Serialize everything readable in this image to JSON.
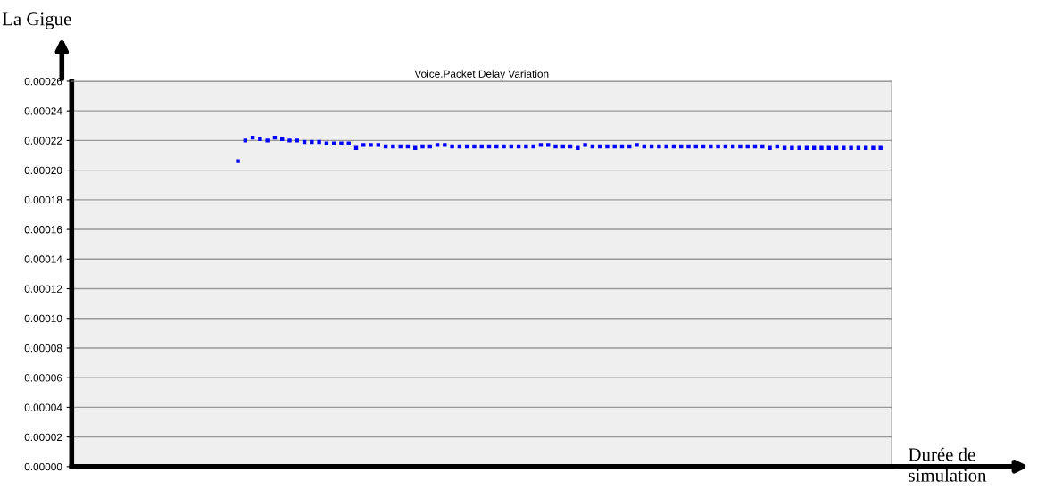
{
  "chart_data": {
    "type": "scatter",
    "title": "Voice.Packet Delay Variation",
    "xlabel": "Durée de\nsimulation",
    "ylabel": "La Gigue",
    "categories": [
      null,
      null,
      null,
      null,
      null,
      null,
      null,
      null,
      null,
      null,
      null,
      null,
      null,
      null,
      null,
      null,
      null,
      null,
      null,
      null,
      null,
      null,
      null,
      null,
      null,
      null,
      null,
      null,
      null,
      null,
      null,
      null,
      null,
      null,
      null,
      null,
      null,
      null,
      null,
      null,
      null,
      null,
      null,
      null,
      null,
      null,
      null,
      null,
      null,
      null,
      null,
      null,
      null,
      null,
      null,
      null,
      null,
      null,
      null,
      null,
      null,
      null,
      null,
      null,
      null,
      null,
      null,
      null,
      null,
      null,
      null,
      null,
      null,
      null,
      null,
      null,
      null,
      null,
      null,
      null,
      null,
      null,
      null,
      null,
      null,
      null,
      null,
      null,
      null,
      null,
      null,
      null,
      null,
      null,
      null,
      null,
      null,
      null,
      null,
      null,
      null,
      null,
      null,
      null,
      null,
      null,
      null,
      null,
      null,
      null,
      null
    ],
    "values": [
      null,
      null,
      null,
      null,
      null,
      null,
      null,
      null,
      null,
      null,
      null,
      null,
      null,
      null,
      null,
      null,
      null,
      null,
      null,
      null,
      null,
      null,
      0.000206,
      0.00022,
      0.000222,
      0.000221,
      0.00022,
      0.000222,
      0.000221,
      0.00022,
      0.00022,
      0.000219,
      0.000219,
      0.000219,
      0.000218,
      0.000218,
      0.000218,
      0.000218,
      0.000215,
      0.000217,
      0.000217,
      0.000217,
      0.000216,
      0.000216,
      0.000216,
      0.000216,
      0.000215,
      0.000216,
      0.000216,
      0.000217,
      0.000217,
      0.000216,
      0.000216,
      0.000216,
      0.000216,
      0.000216,
      0.000216,
      0.000216,
      0.000216,
      0.000216,
      0.000216,
      0.000216,
      0.000216,
      0.000217,
      0.000217,
      0.000216,
      0.000216,
      0.000216,
      0.000215,
      0.000217,
      0.000216,
      0.000216,
      0.000216,
      0.000216,
      0.000216,
      0.000216,
      0.000217,
      0.000216,
      0.000216,
      0.000216,
      0.000216,
      0.000216,
      0.000216,
      0.000216,
      0.000216,
      0.000216,
      0.000216,
      0.000216,
      0.000216,
      0.000216,
      0.000216,
      0.000216,
      0.000216,
      0.000216,
      0.000215,
      0.000216,
      0.000215,
      0.000215,
      0.000215,
      0.000215,
      0.000215,
      0.000215,
      0.000215,
      0.000215,
      0.000215,
      0.000215,
      0.000215,
      0.000215,
      0.000215,
      0.000215,
      null
    ],
    "color": "#0000ff",
    "marker": "square",
    "grid": "y",
    "ylim": [
      0,
      0.00026
    ],
    "yticks": [
      {
        "value": 0,
        "label": "0.00000"
      },
      {
        "value": 2e-05,
        "label": "0.00002"
      },
      {
        "value": 4e-05,
        "label": "0.00004"
      },
      {
        "value": 6e-05,
        "label": "0.00006"
      },
      {
        "value": 8e-05,
        "label": "0.00008"
      },
      {
        "value": 0.0001,
        "label": "0.00010"
      },
      {
        "value": 0.00012,
        "label": "0.00012"
      },
      {
        "value": 0.00014,
        "label": "0.00014"
      },
      {
        "value": 0.00016,
        "label": "0.00016"
      },
      {
        "value": 0.00018,
        "label": "0.00018"
      },
      {
        "value": 0.0002,
        "label": "0.00020"
      },
      {
        "value": 0.00022,
        "label": "0.00022"
      },
      {
        "value": 0.00024,
        "label": "0.00024"
      },
      {
        "value": 0.00026,
        "label": "0.00026"
      }
    ]
  }
}
